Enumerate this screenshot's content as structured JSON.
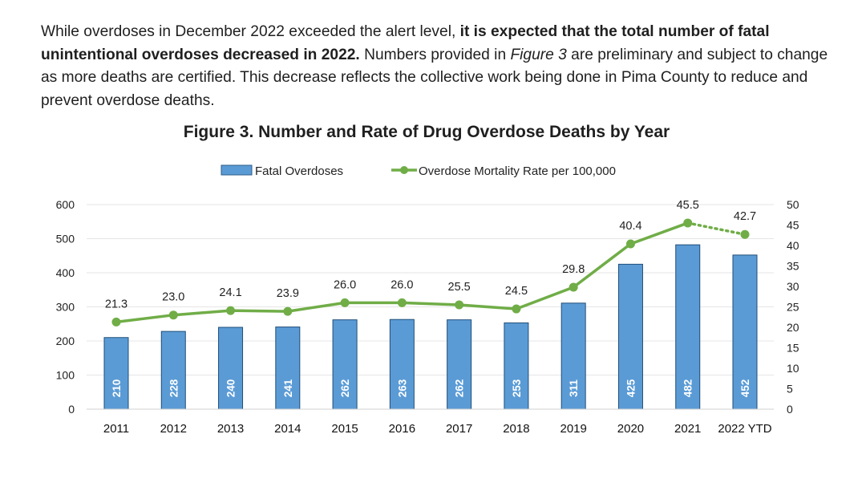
{
  "intro": {
    "part1": "While overdoses in December 2022 exceeded the alert level, ",
    "bold": "it is expected that the total number of fatal unintentional overdoses decreased in 2022.",
    "part2": " Numbers provided in ",
    "italic": "Figure 3",
    "part3": " are preliminary and subject to change as more deaths are certified. This decrease reflects the collective work being done in Pima County to reduce and prevent overdose deaths."
  },
  "chart_data": {
    "type": "bar",
    "title": "Figure 3. Number and Rate of Drug Overdose Deaths by Year",
    "categories": [
      "2011",
      "2012",
      "2013",
      "2014",
      "2015",
      "2016",
      "2017",
      "2018",
      "2019",
      "2020",
      "2021",
      "2022 YTD"
    ],
    "series": [
      {
        "name": "Fatal Overdoses",
        "type": "bar",
        "axis": "left",
        "color": "#5b9bd5",
        "values": [
          210,
          228,
          240,
          241,
          262,
          263,
          262,
          253,
          311,
          425,
          482,
          452
        ]
      },
      {
        "name": "Overdose Mortality Rate per 100,000",
        "type": "line",
        "axis": "right",
        "color": "#70ad47",
        "values": [
          "21.3",
          "23.0",
          "24.1",
          "23.9",
          "26.0",
          "26.0",
          "25.5",
          "24.5",
          "29.8",
          "40.4",
          "45.5",
          "42.7"
        ],
        "dotted_last_segment": true
      }
    ],
    "y_left": {
      "ylim": [
        0,
        600
      ],
      "ticks": [
        0,
        100,
        200,
        300,
        400,
        500,
        600
      ]
    },
    "y_right": {
      "ylim": [
        0,
        50
      ],
      "ticks": [
        0,
        5,
        10,
        15,
        20,
        25,
        30,
        35,
        40,
        45,
        50
      ]
    },
    "legend_position": "top-center",
    "grid": true
  }
}
